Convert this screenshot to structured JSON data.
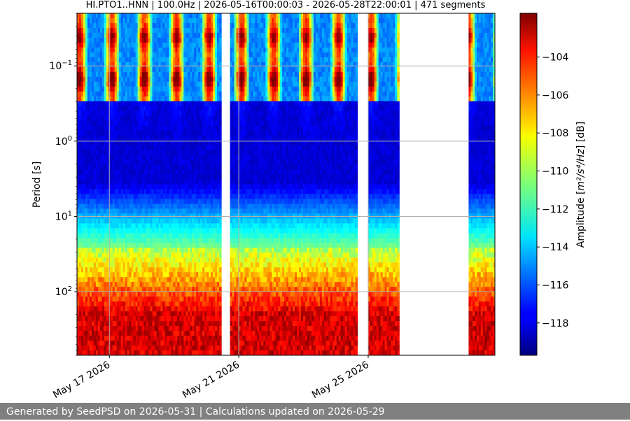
{
  "chart_data": {
    "type": "heatmap",
    "title": "HI.PTO1..HNN | 100.0Hz | 2026-05-16T00:00:03 - 2026-05-28T22:00:01 | 471 segments",
    "ylabel": "Period [s]",
    "y_scale": "log",
    "y_inverted": true,
    "ylim": [
      0.02,
      700
    ],
    "y_ticks": [
      {
        "value": 0.1,
        "base": "10",
        "exp": "−1"
      },
      {
        "value": 1,
        "base": "10",
        "exp": "0"
      },
      {
        "value": 10,
        "base": "10",
        "exp": "1"
      },
      {
        "value": 100,
        "base": "10",
        "exp": "2"
      }
    ],
    "x_range": [
      "2026-05-16T00:00:03",
      "2026-05-28T22:00:01"
    ],
    "x_ticks": [
      {
        "value": "2026-05-17",
        "label": "May 17 2026"
      },
      {
        "value": "2026-05-21",
        "label": "May 21 2026"
      },
      {
        "value": "2026-05-25",
        "label": "May 25 2026"
      }
    ],
    "data_intervals": [
      [
        "2026-05-16T00:00",
        "2026-05-20T11:00"
      ],
      [
        "2026-05-20T17:30",
        "2026-05-24T16:00"
      ],
      [
        "2026-05-25T00:00",
        "2026-05-25T23:00"
      ],
      [
        "2026-05-28T02:30",
        "2026-05-28T22:00"
      ]
    ],
    "colorbar": {
      "label_prefix": "Amplitude [",
      "label_math": "m²/s⁴/Hz",
      "label_suffix": "] [dB]",
      "colormap": "jet",
      "vmin": -119.7,
      "vmax": -101.7,
      "ticks": [
        {
          "value": -104,
          "label": "−104"
        },
        {
          "value": -106,
          "label": "−106"
        },
        {
          "value": -108,
          "label": "−108"
        },
        {
          "value": -110,
          "label": "−110"
        },
        {
          "value": -112,
          "label": "−112"
        },
        {
          "value": -114,
          "label": "−114"
        },
        {
          "value": -116,
          "label": "−116"
        },
        {
          "value": -118,
          "label": "−118"
        }
      ]
    },
    "grid": true
  },
  "footer": {
    "text": "Generated by SeedPSD on 2026-05-31 | Calculations updated on 2026-05-29"
  }
}
